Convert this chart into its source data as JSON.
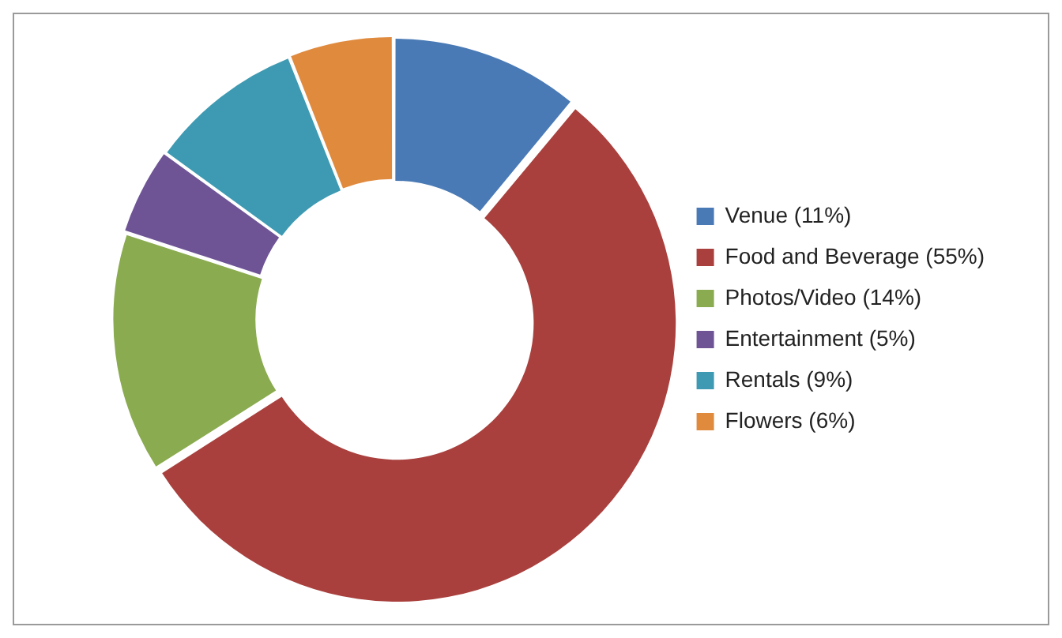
{
  "chart_data": {
    "type": "donut",
    "categories": [
      "Venue (11%)",
      "Food and Beverage (55%)",
      "Photos/Video (14%)",
      "Entertainment (5%)",
      "Rentals (9%)",
      "Flowers (6%)"
    ],
    "values": [
      11,
      55,
      14,
      5,
      9,
      6
    ],
    "colors": [
      "#4a7ab5",
      "#a9403d",
      "#8aab4f",
      "#6e5495",
      "#3e9ab2",
      "#e08a3e"
    ],
    "legend": "right"
  }
}
